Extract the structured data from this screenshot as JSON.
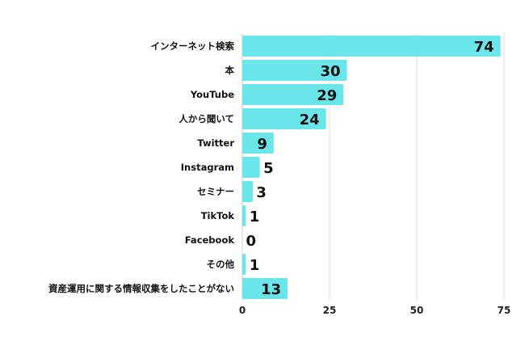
{
  "chart_data": {
    "type": "bar",
    "orientation": "horizontal",
    "title": "",
    "xlabel": "",
    "ylabel": "",
    "categories": [
      "インターネット検索",
      "本",
      "YouTube",
      "人から聞いて",
      "Twitter",
      "Instagram",
      "セミナー",
      "TikTok",
      "Facebook",
      "その他",
      "資産運用に関する情報収集をしたことがない"
    ],
    "values": [
      74,
      30,
      29,
      24,
      9,
      5,
      3,
      1,
      0,
      1,
      13
    ],
    "xlim": [
      0,
      75
    ],
    "xticks": [
      0,
      25,
      50,
      75
    ],
    "grid": "vertical",
    "bar_color": "#6ae5e9",
    "grid_color": "#dddddd",
    "data_labels": true
  }
}
